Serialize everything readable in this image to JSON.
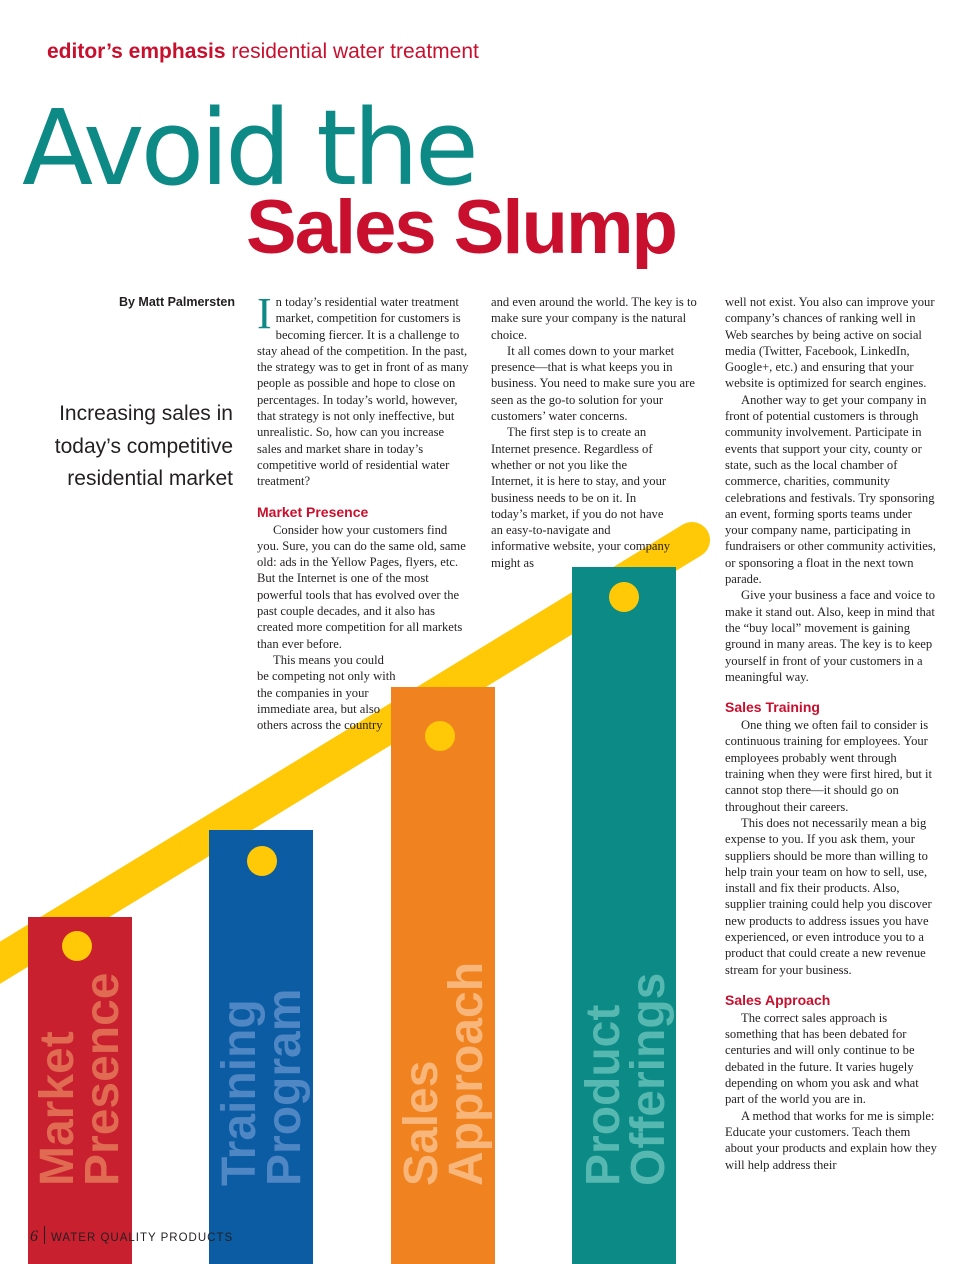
{
  "header": {
    "section_bold": "editor’s emphasis",
    "section_rest": "residential water treatment"
  },
  "headline": {
    "line1": "Avoid the",
    "line2": "Sales Slump"
  },
  "byline": "By Matt Palmersten",
  "deck": [
    "Increasing sales in",
    "today’s competitive",
    "residential market"
  ],
  "article": {
    "dropcap": "I",
    "col1_intro": "n today’s residential water treatment market, competition for customers is becoming fiercer. It is a challenge to stay ahead of the competition. In the past, the strategy was to get in front of as many people as possible and hope to close on percentages. In today’s world, however, that strategy is not only ineffective, but unrealistic. So, how can you increase sales and market share in today’s competitive world of residential water treatment?",
    "heading_market": "Market Presence",
    "col1_p2": "Consider how your customers find you. Sure, you can do the same old, same old: ads in the Yellow Pages, flyers, etc. But the Internet is one of the most powerful tools that has evolved over the past couple decades, and it also has created more competition for all markets than ever before.",
    "col1_p3": "This means you could be competing not only with the companies in your immediate area, but also others across the country",
    "col2_p1": "and even around the world. The key is to make sure your company is the natural choice.",
    "col2_p2": "It all comes down to your market presence—that is what keeps you in business. You need to make sure you are seen as the go-to solution for your customers’ water concerns.",
    "col2_p3": "The first step is to create an Internet presence. Regardless of whether or not you like the Internet, it is here to stay, and your business needs to be on it. In today’s market, if you do not have an easy-to-navigate and informative website, your company might as",
    "col3_p1": "well not exist. You also can improve your company’s chances of ranking well in Web searches by being active on social media (Twitter, Facebook, LinkedIn, Google+, etc.) and ensuring that your website is optimized for search engines.",
    "col3_p2": "Another way to get your company in front of potential customers is through community involvement. Participate in events that support your city, county or state, such as the local chamber of commerce, charities, community celebrations and festivals. Try sponsoring an event, forming sports teams under your company name, participating in fundraisers or other community activities, or sponsoring a float in the next town parade.",
    "col3_p3": "Give your business a face and voice to make it stand out. Also, keep in mind that the “buy local” movement is gaining ground in many areas. The key is to keep yourself in front of your customers in a meaningful way.",
    "heading_training": "Sales Training",
    "col3_p4": "One thing we often fail to consider is continuous training for employees. Your employees probably went through training when they were first hired, but it cannot stop there—it should go on throughout their careers.",
    "col3_p5": "This does not necessarily mean a big expense to you. If you ask them, your suppliers should be more than willing to help train your team on how to sell, use, install and fix their products. Also, supplier training could help you discover new products to address issues you have experienced, or even introduce you to a product that could create a new revenue stream for your business.",
    "heading_approach": "Sales Approach",
    "col3_p6": "The correct sales approach is something that has been debated for centuries and will only continue to be debated in the future. It varies hugely depending on whom you ask and what part of the world you are in.",
    "col3_p7": "A method that works for me is simple: Educate your customers. Teach them about your products and explain how they will help address their"
  },
  "bars": [
    {
      "line1": "Market",
      "line2": "Presence",
      "color": "#c8202f",
      "label_color": "#e06a52"
    },
    {
      "line1": "Training",
      "line2": "Program",
      "color": "#0b5ca3",
      "label_color": "#4f86c4"
    },
    {
      "line1": "Sales",
      "line2": "Approach",
      "color": "#f0831f",
      "label_color": "#f8b67a"
    },
    {
      "line1": "Product",
      "line2": "Offerings",
      "color": "#0b8a86",
      "label_color": "#56b8b1"
    }
  ],
  "colors": {
    "accent_red": "#c8102e",
    "accent_teal": "#0e8a86",
    "swoosh_yellow": "#ffc907"
  },
  "footer": {
    "page_number": "6",
    "magazine": "WATER QUALITY PRODUCTS"
  }
}
